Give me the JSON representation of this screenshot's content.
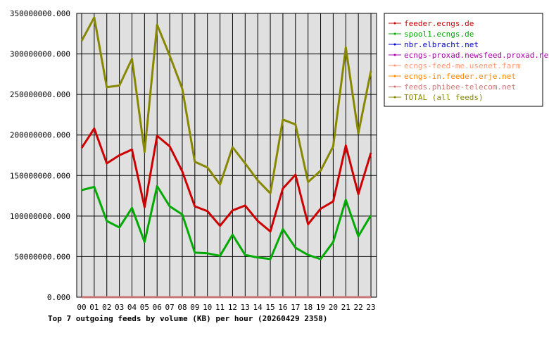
{
  "chart_data": {
    "type": "line",
    "title": "Top 7 outgoing feeds by volume (KB) per hour (20260429 2358)",
    "xlabel": "",
    "ylabel": "",
    "categories": [
      "00",
      "01",
      "02",
      "03",
      "04",
      "05",
      "06",
      "07",
      "08",
      "09",
      "10",
      "11",
      "12",
      "13",
      "14",
      "15",
      "16",
      "17",
      "18",
      "19",
      "20",
      "21",
      "22",
      "23"
    ],
    "ylim": [
      0,
      350000000
    ],
    "yticks": [
      "0.000",
      "50000000.000",
      "100000000.000",
      "150000000.000",
      "200000000.000",
      "250000000.000",
      "300000000.000",
      "350000000.000"
    ],
    "ytick_values": [
      0,
      50000000,
      100000000,
      150000000,
      200000000,
      250000000,
      300000000,
      350000000
    ],
    "grid": true,
    "legend_position": "right",
    "plot_background": "#e0e0e0",
    "series": [
      {
        "name": "feeder.ecngs.de",
        "color": "#cc0000",
        "width": 3,
        "values": [
          184000000,
          208000000,
          165000000,
          175000000,
          182000000,
          111000000,
          199000000,
          186000000,
          155000000,
          112000000,
          106000000,
          88000000,
          107000000,
          113000000,
          94000000,
          81000000,
          134000000,
          151000000,
          90000000,
          109000000,
          118000000,
          187000000,
          127000000,
          178000000
        ]
      },
      {
        "name": "spool1.ecngs.de",
        "color": "#00aa00",
        "width": 3,
        "values": [
          132000000,
          136000000,
          94000000,
          86000000,
          110000000,
          68000000,
          137000000,
          112000000,
          102000000,
          55000000,
          54000000,
          51000000,
          77000000,
          52000000,
          49000000,
          47000000,
          84000000,
          61000000,
          52000000,
          47000000,
          68000000,
          120000000,
          75000000,
          101000000
        ]
      },
      {
        "name": "nbr.elbracht.net",
        "color": "#0000cc",
        "width": 1,
        "values": [
          0,
          0,
          0,
          0,
          0,
          0,
          0,
          0,
          0,
          0,
          0,
          0,
          0,
          0,
          0,
          0,
          0,
          0,
          0,
          0,
          0,
          0,
          0,
          0
        ]
      },
      {
        "name": "ecngs-proxad.newsfeed.proxad.net",
        "color": "#aa00aa",
        "width": 1,
        "values": [
          0,
          0,
          0,
          0,
          0,
          0,
          0,
          0,
          0,
          0,
          0,
          0,
          0,
          0,
          0,
          0,
          0,
          0,
          0,
          0,
          0,
          0,
          0,
          0
        ]
      },
      {
        "name": "ecngs-feed-me.usenet.farm",
        "color": "#ff9977",
        "width": 1,
        "values": [
          0,
          0,
          0,
          0,
          0,
          0,
          0,
          0,
          0,
          0,
          0,
          0,
          0,
          0,
          0,
          0,
          0,
          0,
          0,
          0,
          0,
          0,
          0,
          0
        ]
      },
      {
        "name": "ecngs-in.feeder.erje.net",
        "color": "#ff8800",
        "width": 1,
        "values": [
          0,
          0,
          0,
          0,
          0,
          0,
          0,
          0,
          0,
          0,
          0,
          0,
          0,
          0,
          0,
          0,
          0,
          0,
          0,
          0,
          0,
          0,
          0,
          0
        ]
      },
      {
        "name": "feeds.phibee-telecom.net",
        "color": "#cc7777",
        "width": 3,
        "values": [
          0,
          0,
          0,
          0,
          0,
          0,
          0,
          0,
          0,
          0,
          0,
          0,
          0,
          0,
          0,
          0,
          0,
          0,
          0,
          0,
          0,
          0,
          0,
          0
        ]
      },
      {
        "name": "TOTAL (all feeds)",
        "color": "#888800",
        "width": 3,
        "values": [
          316000000,
          345000000,
          259000000,
          261000000,
          294000000,
          179000000,
          336000000,
          298000000,
          257000000,
          167000000,
          160000000,
          139000000,
          185000000,
          165000000,
          144000000,
          128000000,
          219000000,
          213000000,
          142000000,
          156000000,
          186000000,
          308000000,
          202000000,
          279000000
        ]
      }
    ]
  }
}
